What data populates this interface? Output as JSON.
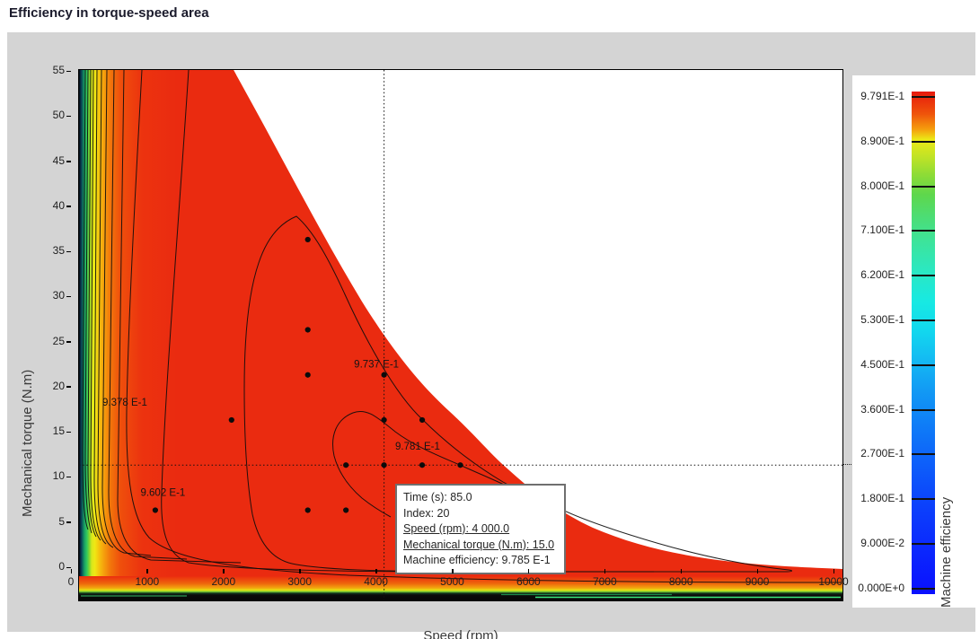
{
  "title": "Efficiency in torque-speed area",
  "chart_data": {
    "type": "heatmap",
    "subtype": "filled-contour-efficiency-map",
    "title": "Efficiency in torque-speed area",
    "xlabel": "Speed (rpm)",
    "ylabel": "Mechanical torque (N.m)",
    "xlim": [
      0,
      10000
    ],
    "ylim": [
      0,
      58.8
    ],
    "x_ticks": [
      0,
      1000,
      2000,
      3000,
      4000,
      5000,
      6000,
      7000,
      8000,
      9000,
      10000
    ],
    "y_ticks": [
      0,
      5,
      10,
      15,
      20,
      25,
      30,
      35,
      40,
      45,
      50,
      55
    ],
    "grid": false,
    "colorbar": {
      "label": "Machine efficiency",
      "position": "right",
      "tick_labels": [
        "9.791E-1",
        "8.900E-1",
        "8.000E-1",
        "7.100E-1",
        "6.200E-1",
        "5.300E-1",
        "4.500E-1",
        "3.600E-1",
        "2.700E-1",
        "1.800E-1",
        "9.000E-2",
        "0.000E+0"
      ],
      "max_color": "#e7190c",
      "min_color": "#0a10fe"
    },
    "contour_labels": [
      {
        "text": "9.378 E-1",
        "speed": 600,
        "torque": 22.0
      },
      {
        "text": "9.602 E-1",
        "speed": 1100,
        "torque": 12.0
      },
      {
        "text": "9.737 E-1",
        "speed": 3900,
        "torque": 26.2
      },
      {
        "text": "9.781 E-1",
        "speed": 4440,
        "torque": 17.1
      }
    ],
    "points": [
      {
        "speed": 1000,
        "torque": 10
      },
      {
        "speed": 2000,
        "torque": 20
      },
      {
        "speed": 3000,
        "torque": 40
      },
      {
        "speed": 3000,
        "torque": 30
      },
      {
        "speed": 3000,
        "torque": 25
      },
      {
        "speed": 3000,
        "torque": 10
      },
      {
        "speed": 3500,
        "torque": 15
      },
      {
        "speed": 3500,
        "torque": 10
      },
      {
        "speed": 4000,
        "torque": 25
      },
      {
        "speed": 4000,
        "torque": 20
      },
      {
        "speed": 4000,
        "torque": 15
      },
      {
        "speed": 4500,
        "torque": 20
      },
      {
        "speed": 4500,
        "torque": 15
      },
      {
        "speed": 5000,
        "torque": 15
      }
    ],
    "crosshair": {
      "speed": 4000,
      "torque": 15
    },
    "selected_point": {
      "time_s": 85.0,
      "index": 20,
      "speed_rpm": 4000.0,
      "torque_nm": 15.0,
      "efficiency": "9.785 E-1"
    }
  },
  "tooltip": {
    "lines": [
      {
        "text": "Time (s): 85.0",
        "underline": false
      },
      {
        "text": "Index: 20",
        "underline": false
      },
      {
        "text": "Speed (rpm): 4 000.0",
        "underline": true
      },
      {
        "text": "Mechanical torque (N.m): 15.0",
        "underline": true
      },
      {
        "text": "Machine efficiency: 9.785 E-1",
        "underline": false
      }
    ]
  }
}
